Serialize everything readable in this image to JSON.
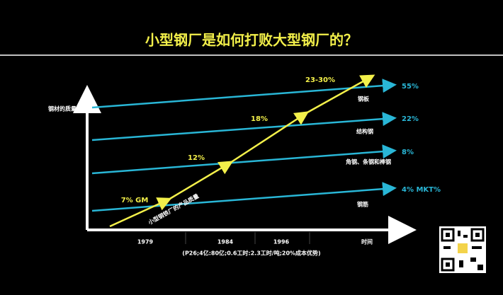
{
  "header": {
    "title": "小型钢厂是如何打败大型钢厂的？"
  },
  "axes": {
    "y_label": "钢材的质量",
    "x_labels": [
      "1979",
      "1984",
      "1996",
      "时间"
    ],
    "footnote": "(P26;4亿:80亿;0.6工时:2.3工时/吨;20%成本优势)"
  },
  "segments": [
    {
      "share": "55%",
      "name": "钢板"
    },
    {
      "share": "22%",
      "name": "结构钢"
    },
    {
      "share": "8%",
      "name": "角钢、条钢和棒钢"
    },
    {
      "share": "4% MKT%",
      "name": "钢筋"
    }
  ],
  "entrant": {
    "label": "小型钢铁厂的产品质量",
    "margins": [
      "7% GM",
      "12%",
      "18%",
      "23-30%"
    ]
  }
}
